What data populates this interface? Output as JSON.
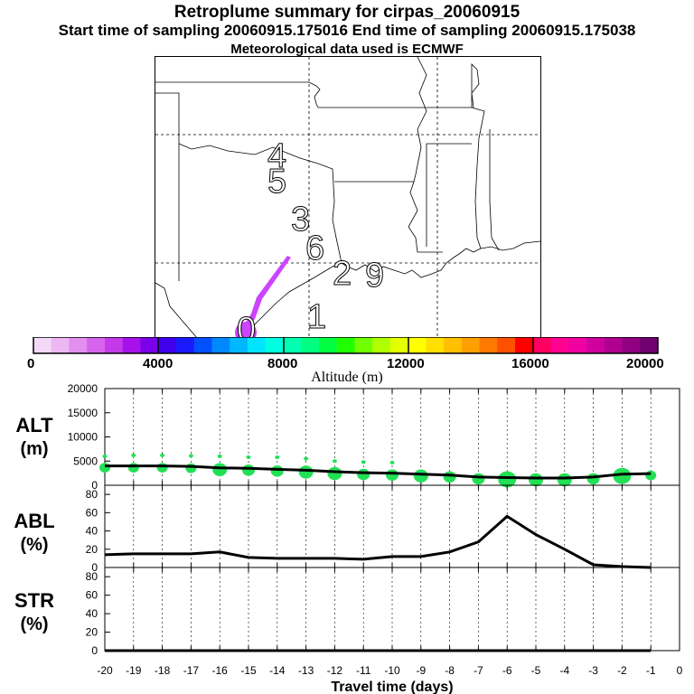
{
  "title": {
    "line1": "Retroplume summary for cirpas_20060915",
    "line2": "Start time of sampling 20060915.175016      End time of sampling 20060915.175038",
    "line3": "Meteorological data used is ECMWF"
  },
  "map": {
    "day_labels": [
      "4",
      "5",
      "3",
      "6",
      "2",
      "9",
      "1",
      "0"
    ],
    "plume_color": "#cc44ff"
  },
  "colorbar": {
    "ticks": [
      "0",
      "4000",
      "8000",
      "12000",
      "16000",
      "20000"
    ],
    "label": "Altitude (m)",
    "colors": [
      "#f3d9f7",
      "#ecb7f3",
      "#e28ff0",
      "#d764ec",
      "#c43aea",
      "#a812ea",
      "#7a00ea",
      "#4000ec",
      "#1a1aff",
      "#0050ff",
      "#0088ff",
      "#00b8ff",
      "#00e4ff",
      "#00ffe0",
      "#00ffb0",
      "#00ff80",
      "#00ff40",
      "#20ff00",
      "#70ff00",
      "#b0ff00",
      "#e4ff00",
      "#ffff00",
      "#ffe000",
      "#ffc000",
      "#ffa000",
      "#ff7800",
      "#ff5000",
      "#ff0000",
      "#ff0060",
      "#ff0090",
      "#f000a0",
      "#d000a0",
      "#b00090",
      "#900080",
      "#700070"
    ]
  },
  "panels": {
    "alt_label_1": "ALT",
    "alt_label_2": "(m)",
    "abl_label_1": "ABL",
    "abl_label_2": "(%)",
    "str_label_1": "STR",
    "str_label_2": "(%)",
    "xlabel": "Travel time (days)"
  },
  "chart_data": [
    {
      "type": "line",
      "panel": "ALT",
      "ylabel": "ALT (m)",
      "ylim": [
        0,
        20000
      ],
      "yticks": [
        "20000",
        "15000",
        "10000",
        "5000",
        "0"
      ],
      "x": [
        -20,
        -19,
        -18,
        -17,
        -16,
        -15,
        -14,
        -13,
        -12,
        -11,
        -10,
        -9,
        -8,
        -7,
        -6,
        -5,
        -4,
        -3,
        -2,
        -1
      ],
      "mean_altitude": [
        4000,
        4000,
        4000,
        3900,
        3600,
        3500,
        3300,
        3100,
        2800,
        2600,
        2500,
        2300,
        2100,
        1700,
        1600,
        1500,
        1500,
        1700,
        2300,
        2400
      ],
      "bubble_color": "#22e055",
      "bubble_sizes": [
        6,
        6,
        6,
        6,
        8,
        7,
        7,
        8,
        8,
        7,
        7,
        8,
        7,
        7,
        10,
        8,
        8,
        7,
        10,
        6
      ],
      "outlier_altitude": [
        6000,
        6200,
        6200,
        6100,
        6000,
        5800,
        5800,
        5500,
        5000,
        4800,
        4700,
        0,
        0,
        0,
        0,
        0,
        0,
        0,
        0,
        0
      ]
    },
    {
      "type": "line",
      "panel": "ABL",
      "ylabel": "ABL (%)",
      "ylim": [
        0,
        90
      ],
      "yticks": [
        "80",
        "60",
        "40",
        "20",
        "0"
      ],
      "x": [
        -20,
        -19,
        -18,
        -17,
        -16,
        -15,
        -14,
        -13,
        -12,
        -11,
        -10,
        -9,
        -8,
        -7,
        -6,
        -5,
        -4,
        -3,
        -2,
        -1
      ],
      "values": [
        14,
        15,
        15,
        15,
        17,
        11,
        10,
        10,
        10,
        9,
        12,
        12,
        17,
        28,
        56,
        36,
        20,
        3,
        1,
        0
      ]
    },
    {
      "type": "line",
      "panel": "STR",
      "ylabel": "STR (%)",
      "ylim": [
        0,
        90
      ],
      "yticks": [
        "80",
        "60",
        "40",
        "20",
        "0"
      ],
      "x": [
        -20,
        -19,
        -18,
        -17,
        -16,
        -15,
        -14,
        -13,
        -12,
        -11,
        -10,
        -9,
        -8,
        -7,
        -6,
        -5,
        -4,
        -3,
        -2,
        -1
      ],
      "values": [
        0,
        0,
        0,
        0,
        0,
        0,
        0,
        0,
        0,
        0,
        0,
        0,
        0,
        0,
        0,
        0,
        0,
        0,
        0,
        0
      ]
    },
    {
      "type": "table",
      "panel": "x-axis",
      "xticks": [
        "-20",
        "-19",
        "-18",
        "-17",
        "-16",
        "-15",
        "-14",
        "-13",
        "-12",
        "-11",
        "-10",
        "-9",
        "-8",
        "-7",
        "-6",
        "-5",
        "-4",
        "-3",
        "-2",
        "-1",
        "0"
      ]
    }
  ]
}
